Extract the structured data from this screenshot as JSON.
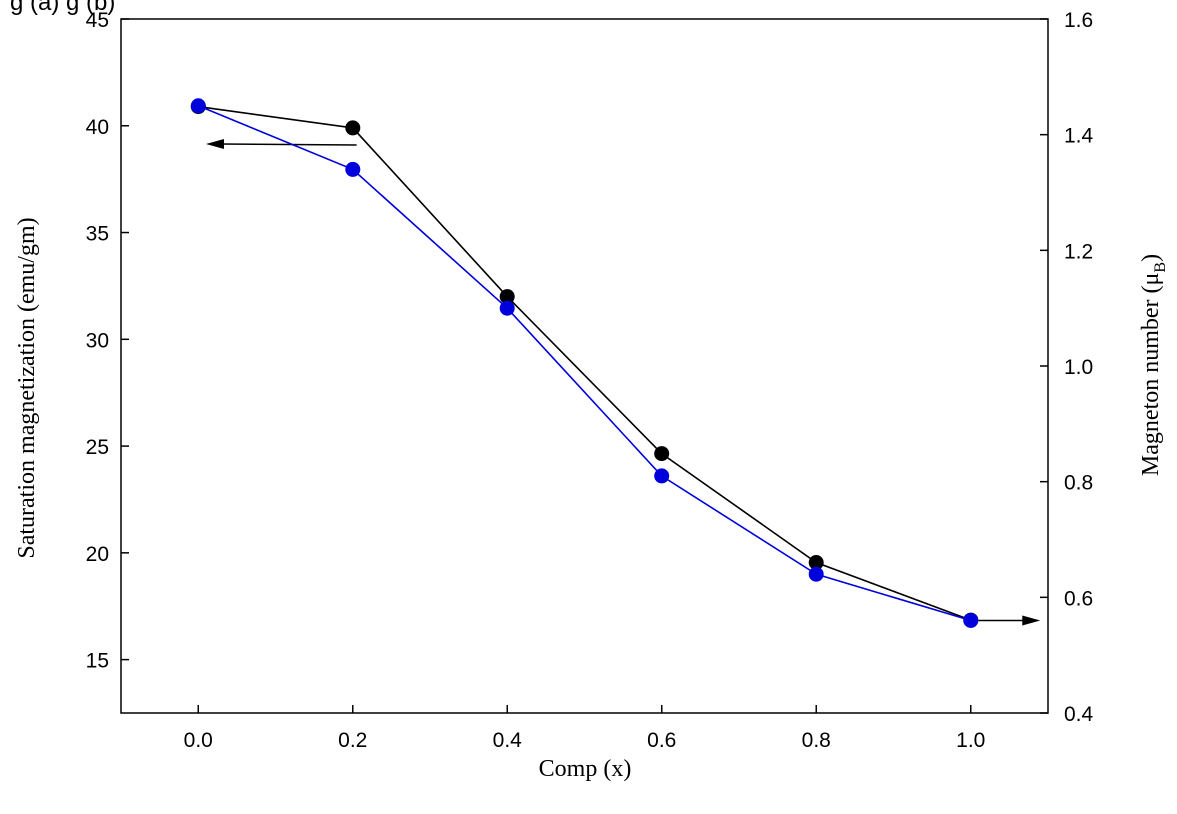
{
  "chart_data": {
    "type": "line",
    "title": "",
    "header_visible_text": "g                                    (a)                     g                       (b)",
    "xlabel": "Comp (x)",
    "ylabel_left": "Saturation magnetization (emu/gm)",
    "ylabel_right_main": "Magneton number (μ",
    "ylabel_right_sub": "B",
    "ylabel_right_close": ")",
    "xlim": [
      -0.1,
      1.1
    ],
    "ylim_left": [
      12.5,
      45
    ],
    "ylim_right": [
      0.4,
      1.6
    ],
    "x_ticks": [
      "0.0",
      "0.2",
      "0.4",
      "0.6",
      "0.8",
      "1.0"
    ],
    "y_left_ticks": [
      "15",
      "20",
      "25",
      "30",
      "35",
      "40",
      "45"
    ],
    "y_right_ticks": [
      "0.4",
      "0.6",
      "0.8",
      "1.0",
      "1.2",
      "1.4",
      "1.6"
    ],
    "grid": false,
    "series": [
      {
        "axis": "left",
        "color": "#000000",
        "x": [
          0.0,
          0.2,
          0.4,
          0.6,
          0.8,
          1.0
        ],
        "y": [
          40.9,
          39.9,
          32.0,
          24.65,
          19.55,
          16.85
        ]
      },
      {
        "axis": "right",
        "color": "#0000dd",
        "x": [
          0.0,
          0.2,
          0.4,
          0.6,
          0.8,
          1.0
        ],
        "y": [
          1.45,
          1.34,
          1.1,
          0.81,
          0.64,
          0.56
        ]
      }
    ],
    "annotations": [
      {
        "type": "arrow",
        "direction": "left",
        "meaning": "black series uses left axis"
      },
      {
        "type": "arrow",
        "direction": "right",
        "meaning": "blue series uses right axis"
      }
    ]
  }
}
